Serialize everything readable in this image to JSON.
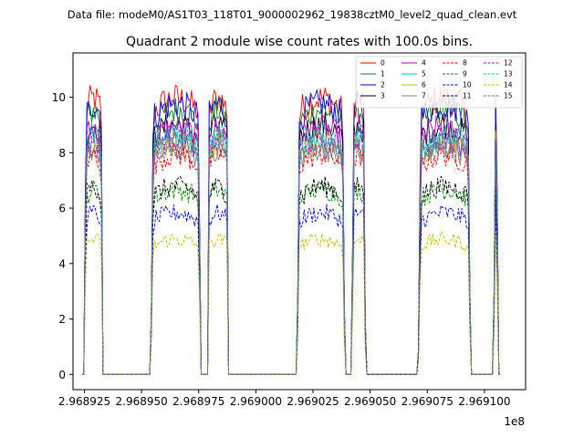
{
  "chart_data": {
    "type": "line",
    "suptitle": "Data file: modeM0/AS1T03_118T01_9000002962_19838cztM0_level2_quad_clean.evt",
    "title": "Quadrant 2 module wise count rates with 100.0s bins.",
    "xlabel": "",
    "ylabel": "",
    "x_offset_label": "1e8",
    "xlim": [
      296892.0,
      296911.8
    ],
    "ylim": [
      -0.55,
      11.6
    ],
    "x_ticks": [
      296892.5,
      296895.0,
      296897.5,
      296900.0,
      296902.5,
      296905.0,
      296907.5,
      296910.0
    ],
    "x_tick_labels": [
      "2.968925",
      "2.968950",
      "2.968975",
      "2.969000",
      "2.969025",
      "2.969050",
      "2.969075",
      "2.969100"
    ],
    "y_ticks": [
      0,
      2,
      4,
      6,
      8,
      10
    ],
    "y_tick_labels": [
      "0",
      "2",
      "4",
      "6",
      "8",
      "10"
    ],
    "active_intervals": [
      [
        296892.5,
        296893.3
      ],
      [
        296895.4,
        296897.6
      ],
      [
        296897.9,
        296898.8
      ],
      [
        296901.8,
        296903.9
      ],
      [
        296904.2,
        296904.8
      ],
      [
        296907.1,
        296909.4
      ],
      [
        296910.4,
        296910.6
      ]
    ],
    "legend_location": "upper right",
    "legend_columns": 4,
    "series": [
      {
        "name": "0",
        "color": "#ff0000",
        "dash": "solid",
        "level": 9.4
      },
      {
        "name": "1",
        "color": "#008000",
        "dash": "solid",
        "level": 9.0
      },
      {
        "name": "2",
        "color": "#0000ff",
        "dash": "solid",
        "level": 9.2
      },
      {
        "name": "3",
        "color": "#000000",
        "dash": "solid",
        "level": 8.5
      },
      {
        "name": "4",
        "color": "#bf00bf",
        "dash": "solid",
        "level": 8.4
      },
      {
        "name": "5",
        "color": "#00bfbf",
        "dash": "solid",
        "level": 8.0
      },
      {
        "name": "6",
        "color": "#bfbf00",
        "dash": "solid",
        "level": 7.9
      },
      {
        "name": "7",
        "color": "#808080",
        "dash": "solid",
        "level": 7.7
      },
      {
        "name": "8",
        "color": "#ff0000",
        "dash": "dashed",
        "level": 7.5
      },
      {
        "name": "9",
        "color": "#008000",
        "dash": "dashed",
        "level": 6.3
      },
      {
        "name": "10",
        "color": "#0000ff",
        "dash": "dashed",
        "level": 5.5
      },
      {
        "name": "11",
        "color": "#000000",
        "dash": "dashed",
        "level": 6.4
      },
      {
        "name": "12",
        "color": "#bf00bf",
        "dash": "dashed",
        "level": 8.1
      },
      {
        "name": "13",
        "color": "#00bfbf",
        "dash": "dashed",
        "level": 8.2
      },
      {
        "name": "14",
        "color": "#bfbf00",
        "dash": "dashed",
        "level": 4.6
      },
      {
        "name": "15",
        "color": "#6a6aaa",
        "dash": "dashed",
        "level": 7.8
      }
    ]
  }
}
